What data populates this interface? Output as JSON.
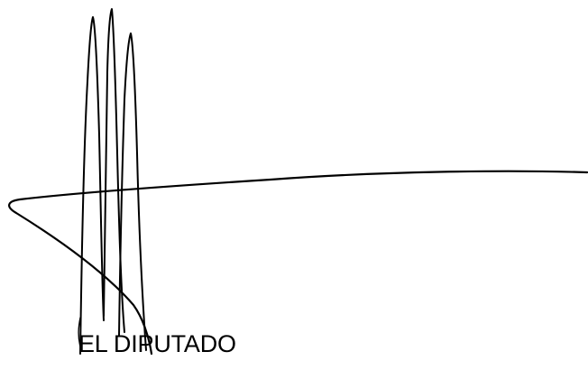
{
  "document": {
    "caption": "EL DIPUTADO",
    "ink_color": "#000000",
    "background_color": "#ffffff"
  }
}
